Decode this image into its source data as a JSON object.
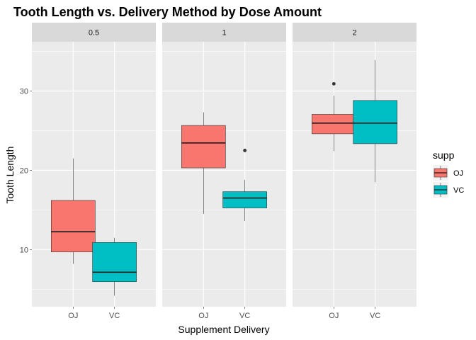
{
  "chart_data": {
    "type": "box",
    "title": "Tooth Length vs. Delivery Method by Dose Amount",
    "xlabel": "Supplement Delivery",
    "ylabel": "Tooth Length",
    "ylim": [
      2.8,
      36.2
    ],
    "yticks": [
      10,
      20,
      30
    ],
    "facet_variable": "dose",
    "facets": [
      "0.5",
      "1",
      "2"
    ],
    "categories": [
      "OJ",
      "VC"
    ],
    "legend": {
      "title": "supp",
      "position": "right",
      "entries": [
        "OJ",
        "VC"
      ]
    },
    "colors": {
      "OJ": "#F8766D",
      "VC": "#00BFC4",
      "panel_bg": "#EBEBEB",
      "strip_bg": "#D9D9D9",
      "grid": "#FFFFFF"
    },
    "series": [
      {
        "facet": "0.5",
        "category": "OJ",
        "whisker_low": 8.2,
        "q1": 9.7,
        "median": 12.25,
        "q3": 16.2,
        "whisker_high": 21.5,
        "outliers": []
      },
      {
        "facet": "0.5",
        "category": "VC",
        "whisker_low": 4.2,
        "q1": 5.95,
        "median": 7.15,
        "q3": 10.9,
        "whisker_high": 11.5,
        "outliers": []
      },
      {
        "facet": "1",
        "category": "OJ",
        "whisker_low": 14.5,
        "q1": 20.3,
        "median": 23.45,
        "q3": 25.65,
        "whisker_high": 27.3,
        "outliers": []
      },
      {
        "facet": "1",
        "category": "VC",
        "whisker_low": 13.6,
        "q1": 15.25,
        "median": 16.5,
        "q3": 17.3,
        "whisker_high": 18.8,
        "outliers": [
          22.5
        ]
      },
      {
        "facet": "2",
        "category": "OJ",
        "whisker_low": 22.4,
        "q1": 24.6,
        "median": 25.95,
        "q3": 27.05,
        "whisker_high": 29.4,
        "outliers": [
          30.9
        ]
      },
      {
        "facet": "2",
        "category": "VC",
        "whisker_low": 18.5,
        "q1": 23.35,
        "median": 25.95,
        "q3": 28.8,
        "whisker_high": 33.9,
        "outliers": []
      }
    ]
  }
}
